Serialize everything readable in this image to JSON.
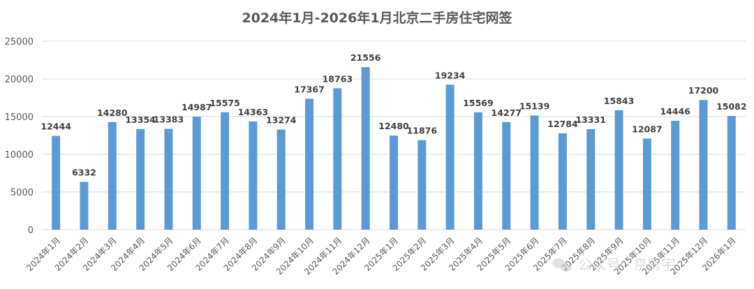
{
  "chart_data": {
    "type": "bar",
    "title": "2024年1月-2026年1月北京二手房住宅网签",
    "xlabel": "",
    "ylabel": "",
    "ylim": [
      0,
      25000
    ],
    "yticks": [
      0,
      5000,
      10000,
      15000,
      20000,
      25000
    ],
    "grid": true,
    "color": "#5b9bd5",
    "categories": [
      "2024年1月",
      "2024年2月",
      "2024年3月",
      "2024年4月",
      "2024年5月",
      "2024年6月",
      "2024年7月",
      "2024年8月",
      "2024年9月",
      "2024年10月",
      "2024年11月",
      "2024年12月",
      "2025年1月",
      "2025年2月",
      "2025年3月",
      "2025年4月",
      "2025年5月",
      "2025年6月",
      "2025年7月",
      "2025年8月",
      "2025年9月",
      "2025年10月",
      "2025年11月",
      "2025年12月",
      "2026年1月"
    ],
    "values": [
      12444,
      6332,
      14280,
      13354,
      13383,
      14987,
      15575,
      14363,
      13274,
      17367,
      18763,
      21556,
      12480,
      11876,
      19234,
      15569,
      14277,
      15139,
      12784,
      13331,
      15843,
      12087,
      14446,
      17200,
      15082
    ]
  },
  "watermark": {
    "text": "公众号 · 京房宇",
    "icon": "wechat-icon"
  }
}
